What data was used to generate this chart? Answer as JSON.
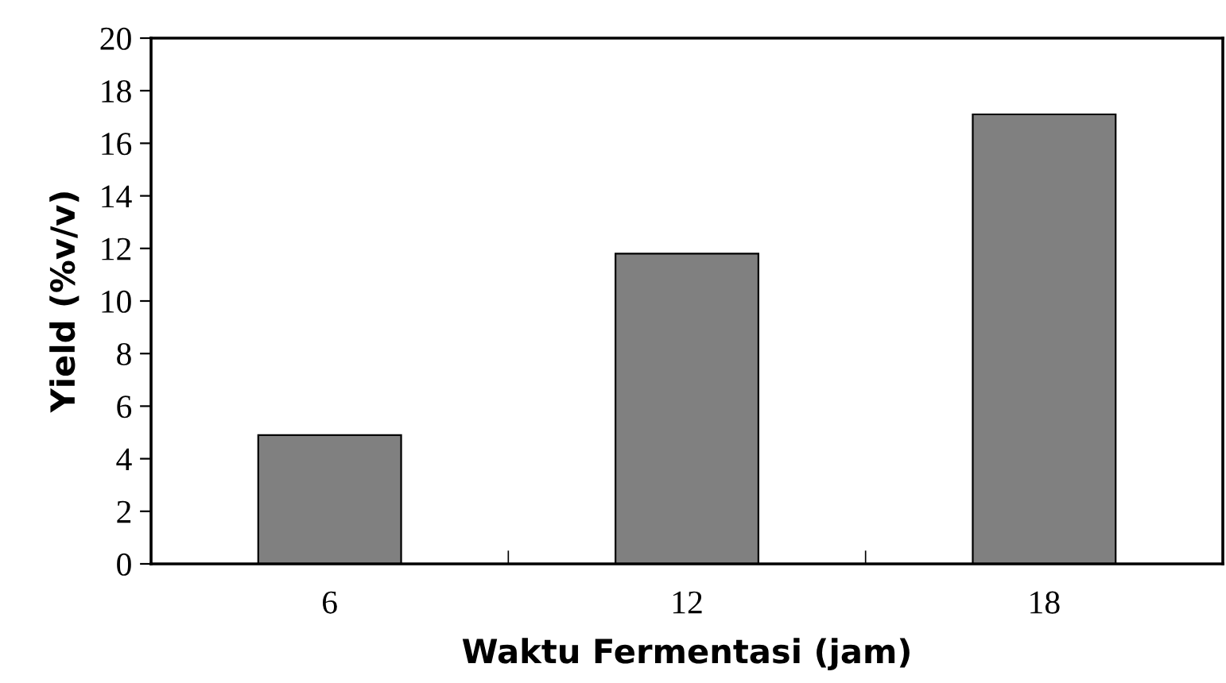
{
  "chart_data": {
    "type": "bar",
    "xlabel": "Waktu Fermentasi (jam)",
    "ylabel": "Yield (%v/v)",
    "categories": [
      "6",
      "12",
      "18"
    ],
    "values": [
      4.9,
      11.8,
      17.1
    ],
    "color": "#808080",
    "ylim": [
      0,
      20
    ],
    "yticks": [
      0,
      2,
      4,
      6,
      8,
      10,
      12,
      14,
      16,
      18,
      20
    ],
    "grid": false,
    "legend": false
  }
}
